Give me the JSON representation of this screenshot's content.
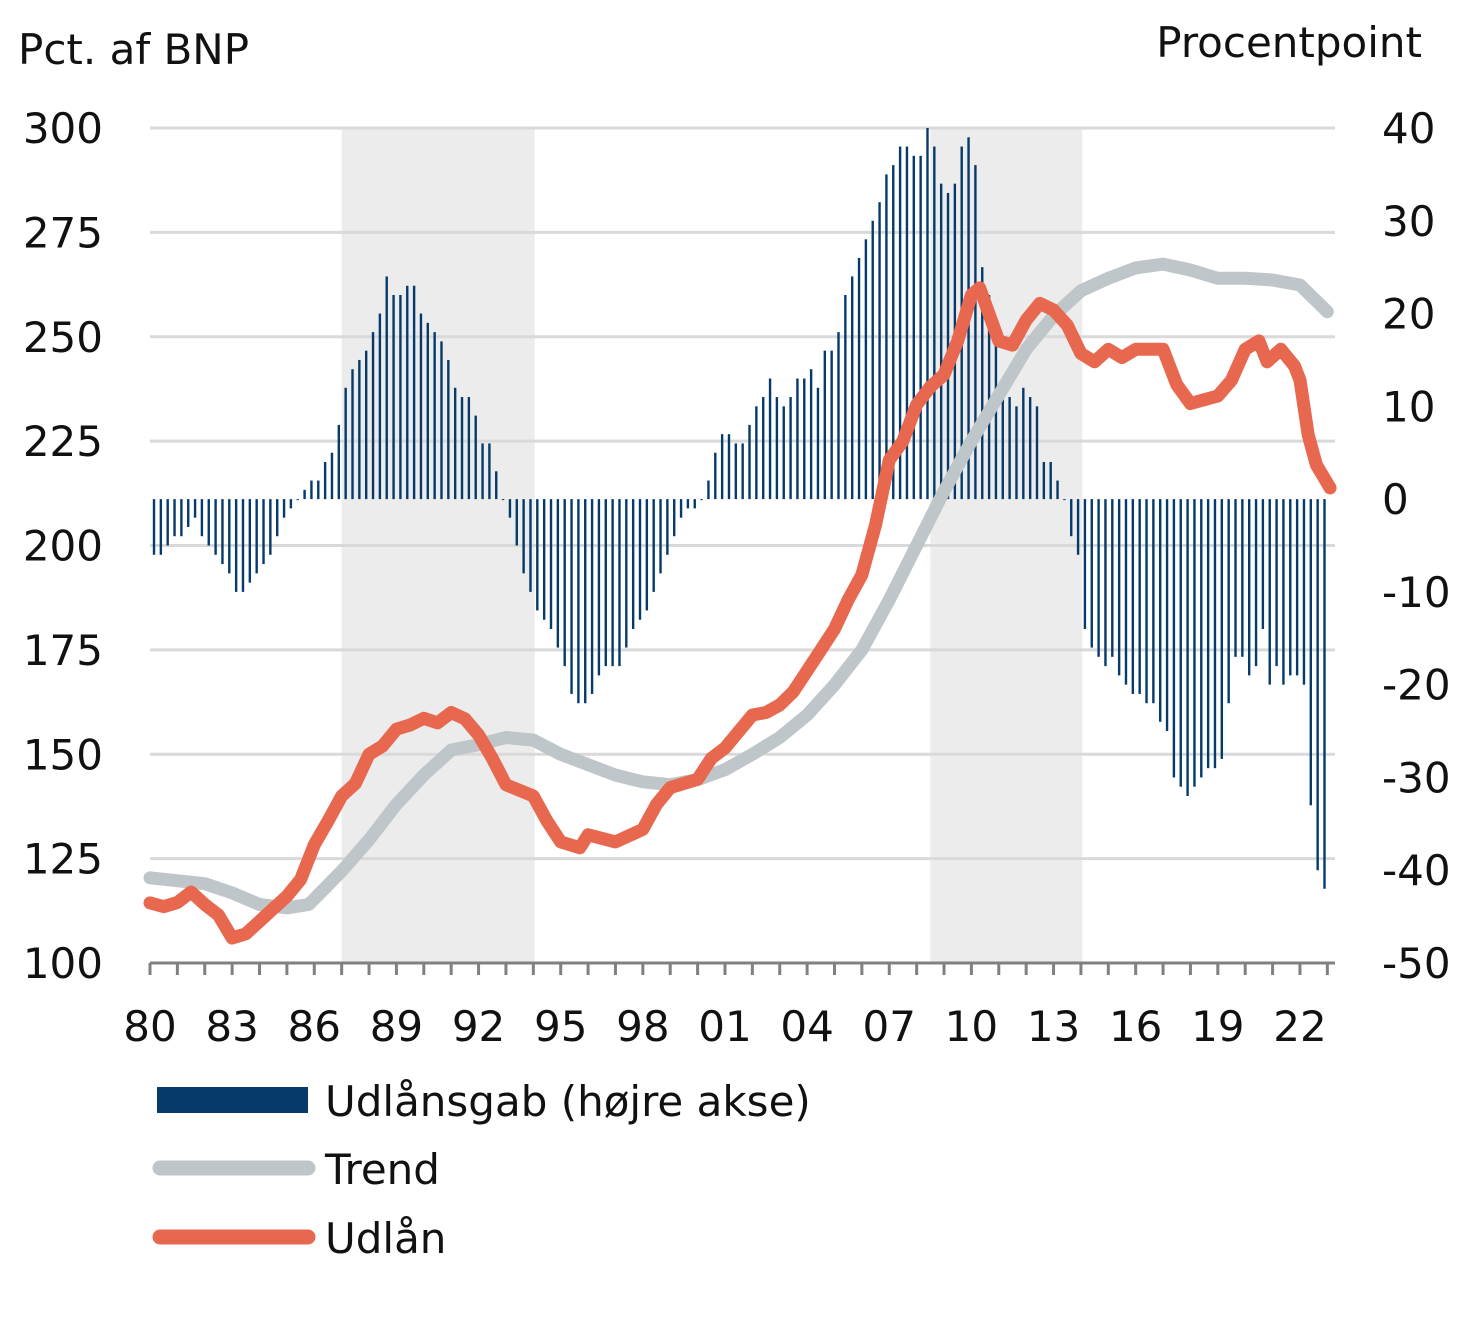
{
  "chart_data": {
    "type": "bar+line",
    "left_axis_label": "Pct. af BNP",
    "right_axis_label": "Procentpoint",
    "left_ylim": [
      100,
      300
    ],
    "left_ticks": [
      "300",
      "275",
      "250",
      "225",
      "200",
      "175",
      "150",
      "125",
      "100"
    ],
    "right_ylim": [
      -50,
      40
    ],
    "right_ticks": [
      "40",
      "30",
      "20",
      "10",
      "0",
      "-10",
      "-20",
      "-30",
      "-40",
      "-50"
    ],
    "xlim": [
      1980,
      2023.1
    ],
    "x_tick_labels": [
      "80",
      "83",
      "86",
      "89",
      "92",
      "95",
      "98",
      "01",
      "04",
      "07",
      "10",
      "13",
      "16",
      "19",
      "22"
    ],
    "grid": true,
    "shaded_periods": [
      [
        1987.0,
        1994.05
      ],
      [
        2008.5,
        2014.05
      ]
    ],
    "colors": {
      "gap": "#053a6b",
      "trend": "#bfc6c9",
      "lending": "#e8674f",
      "shade": "#ececec",
      "grid": "#d9d9d9"
    },
    "legend": {
      "placement": "bottom-left",
      "items": [
        {
          "label": "Udlånsgab (højre akse)",
          "type": "bar",
          "color": "#053a6b"
        },
        {
          "label": "Trend",
          "type": "line",
          "color": "#bfc6c9"
        },
        {
          "label": "Udlån",
          "type": "line",
          "color": "#e8674f"
        }
      ]
    },
    "gap_series": {
      "name": "Udlånsgab (højre akse)",
      "axis": "right",
      "start": 1980.0,
      "frequency": "quarterly",
      "values": [
        -6,
        -6,
        -5,
        -4,
        -4,
        -3,
        -2,
        -4,
        -5,
        -6,
        -7,
        -8,
        -10,
        -10,
        -9,
        -8,
        -7,
        -6,
        -4,
        -2,
        -1,
        0,
        1,
        2,
        2,
        4,
        5,
        8,
        12,
        14,
        15,
        16,
        18,
        20,
        24,
        22,
        22,
        23,
        23,
        20,
        19,
        18,
        17,
        15,
        12,
        11,
        11,
        9,
        6,
        6,
        3,
        0,
        -2,
        -5,
        -8,
        -10,
        -12,
        -13,
        -14,
        -16,
        -18,
        -21,
        -22,
        -22,
        -21,
        -19,
        -18,
        -18,
        -18,
        -16,
        -14,
        -13,
        -12,
        -10,
        -8,
        -6,
        -4,
        -2,
        -1,
        -1,
        0,
        2,
        5,
        7,
        7,
        6,
        6,
        8,
        10,
        11,
        13,
        11,
        10,
        11,
        13,
        13,
        14,
        12,
        16,
        16,
        18,
        22,
        24,
        26,
        28,
        30,
        32,
        35,
        36,
        38,
        38,
        37,
        37,
        40,
        38,
        34,
        33,
        34,
        38,
        39,
        36,
        25,
        22,
        19,
        12,
        11,
        10,
        12,
        11,
        10,
        4,
        4,
        2,
        0,
        -4,
        -6,
        -14,
        -16,
        -17,
        -18,
        -17,
        -19,
        -20,
        -21,
        -21,
        -22,
        -22,
        -24,
        -25,
        -30,
        -31,
        -32,
        -31,
        -30,
        -29,
        -29,
        -28,
        -22,
        -17,
        -17,
        -19,
        -18,
        -14,
        -20,
        -18,
        -20,
        -19,
        -19,
        -20,
        -33,
        -40,
        -42
      ]
    },
    "trend_series": {
      "name": "Trend",
      "axis": "left",
      "x": [
        1980,
        1982,
        1983,
        1984,
        1985,
        1985.8,
        1987,
        1988,
        1989,
        1990,
        1991,
        1992,
        1993,
        1994,
        1995,
        1996,
        1997,
        1998,
        1999,
        2000,
        2001,
        2002,
        2003,
        2004,
        2005,
        2006,
        2007,
        2008,
        2009,
        2010,
        2011,
        2012,
        2013,
        2014,
        2015,
        2016,
        2017,
        2018,
        2019,
        2020,
        2021,
        2022,
        2023
      ],
      "y": [
        120.4,
        119,
        116.8,
        114,
        113.2,
        114,
        122,
        129.5,
        138,
        145,
        151,
        152.3,
        154,
        153.4,
        150,
        147.5,
        145,
        143.4,
        142.7,
        143.9,
        146.3,
        150,
        154,
        159.4,
        166.6,
        175,
        187,
        200,
        213,
        225,
        236,
        247,
        255,
        261,
        264,
        266.5,
        267.4,
        266,
        264,
        264,
        263.6,
        262.4,
        256
      ]
    },
    "lending_series": {
      "name": "Udlån",
      "axis": "left",
      "x": [
        1980,
        1980.5,
        1981,
        1981.5,
        1982,
        1982.5,
        1983,
        1983.5,
        1984,
        1984.5,
        1985,
        1985.5,
        1986,
        1986.5,
        1987,
        1987.5,
        1988,
        1988.5,
        1989,
        1989.5,
        1990,
        1990.5,
        1991,
        1991.5,
        1992,
        1992.5,
        1993,
        1994,
        1994.5,
        1995,
        1995.7,
        1996,
        1997,
        1998,
        1998.5,
        1999,
        2000,
        2000.5,
        2001,
        2002,
        2002.5,
        2003,
        2003.5,
        2004,
        2004.5,
        2005,
        2005.5,
        2006,
        2006.5,
        2007,
        2007.5,
        2008,
        2008.5,
        2009,
        2009.5,
        2010,
        2010.3,
        2011,
        2011.5,
        2012,
        2012.5,
        2013,
        2013.5,
        2014,
        2014.5,
        2015,
        2015.5,
        2016,
        2017,
        2017.5,
        2018,
        2019,
        2019.5,
        2020,
        2020.5,
        2020.8,
        2021.3,
        2021.8,
        2022,
        2022.3,
        2022.6,
        2023.1
      ],
      "y": [
        114.4,
        113.5,
        114.5,
        117,
        114,
        111.5,
        106,
        107,
        110,
        113,
        116,
        120,
        128.3,
        134,
        140,
        143,
        150,
        152,
        156,
        157,
        158.6,
        157.5,
        160,
        158.5,
        154.6,
        149,
        142.7,
        140,
        134,
        129,
        127.6,
        130.7,
        129,
        132,
        138,
        142,
        144,
        149,
        151.5,
        159.4,
        160,
        161.8,
        165,
        170,
        175,
        180,
        187,
        193,
        205,
        220.5,
        225,
        233.7,
        238,
        240.9,
        249,
        260,
        261.7,
        249,
        248,
        254,
        258,
        256.4,
        252.8,
        246,
        244,
        247,
        245,
        247,
        247,
        238.5,
        234,
        235.8,
        239.6,
        247,
        249,
        244,
        247,
        243,
        239.6,
        226.5,
        219.3,
        213.8
      ]
    }
  }
}
